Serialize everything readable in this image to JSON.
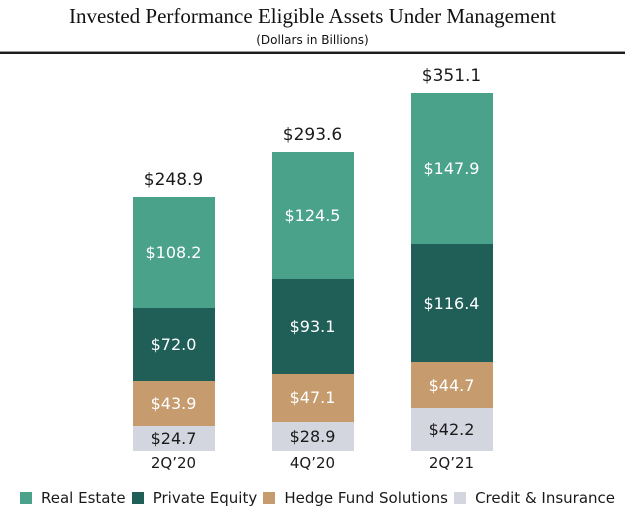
{
  "header": {
    "title": "Invested Performance Eligible Assets Under Management",
    "subtitle": "(Dollars in Billions)"
  },
  "chart_data": {
    "type": "bar",
    "stacked": true,
    "unit": "USD billions",
    "grid": false,
    "categories": [
      "2Q’20",
      "4Q’20",
      "2Q’21"
    ],
    "totals": [
      248.9,
      293.6,
      351.1
    ],
    "total_labels": [
      "$248.9",
      "$293.6",
      "$351.1"
    ],
    "series": [
      {
        "name": "Credit & Insurance",
        "values": [
          24.7,
          28.9,
          42.2
        ],
        "labels": [
          "$24.7",
          "$28.9",
          "$42.2"
        ],
        "color": "#d3d6df",
        "label_color": "#1a1a1a"
      },
      {
        "name": "Hedge Fund Solutions",
        "values": [
          43.9,
          47.1,
          44.7
        ],
        "labels": [
          "$43.9",
          "$47.1",
          "$44.7"
        ],
        "color": "#c69c6e",
        "label_color": "#ffffff"
      },
      {
        "name": "Private Equity",
        "values": [
          72.0,
          93.1,
          116.4
        ],
        "labels": [
          "$72.0",
          "$93.1",
          "$116.4"
        ],
        "color": "#1f5f58",
        "label_color": "#ffffff"
      },
      {
        "name": "Real Estate",
        "values": [
          108.2,
          124.5,
          147.9
        ],
        "labels": [
          "$108.2",
          "$124.5",
          "$147.9"
        ],
        "color": "#4ba28b",
        "label_color": "#ffffff"
      }
    ],
    "legend": [
      {
        "label": "Real Estate",
        "color": "#4ba28b"
      },
      {
        "label": "Private Equity",
        "color": "#1f5f58"
      },
      {
        "label": "Hedge Fund Solutions",
        "color": "#c69c6e"
      },
      {
        "label": "Credit & Insurance",
        "color": "#d3d6df"
      }
    ],
    "legend_position": "bottom"
  }
}
